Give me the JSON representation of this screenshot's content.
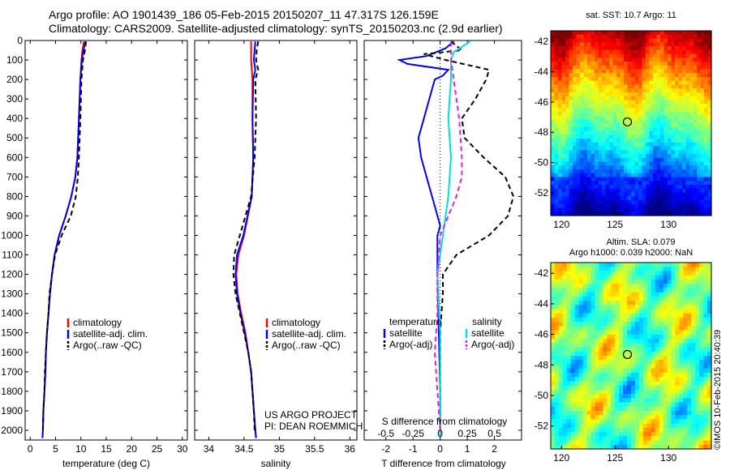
{
  "header": {
    "line1": "Argo profile: AO 1901439_186 05-Feb-2015 20150207_11 47.317S 126.159E",
    "line2": "Climatology: CARS2009. Satellite-adjusted climatology: synTS_20150203.nc (2.9d earlier)"
  },
  "timestamp": "©IMOS 10-Feb-2015 20:40:39",
  "credits": [
    "US ARGO PROJECT",
    "PI: DEAN ROEMMICH"
  ],
  "colors": {
    "climatology": "#ff0000",
    "satellite": "#0000ff",
    "argo": "#000000",
    "sat_salinity": "#00e0e0",
    "argo_salinity": "#e020e0"
  },
  "chart_data": [
    {
      "type": "line",
      "id": "temperature",
      "xlabel": "temperature (deg C)",
      "xlim": [
        -1,
        31
      ],
      "xticks": [
        0,
        5,
        10,
        15,
        20,
        25,
        30
      ],
      "ylim": [
        0,
        2050
      ],
      "yticks": [
        0,
        100,
        200,
        300,
        400,
        500,
        600,
        700,
        800,
        900,
        1000,
        1100,
        1200,
        1300,
        1400,
        1500,
        1600,
        1700,
        1800,
        1900,
        2000
      ],
      "legend": [
        "climatology",
        "satellite-adj. clim.",
        "Argo(..raw -QC)"
      ],
      "series": [
        {
          "name": "climatology",
          "color": "#ff0000",
          "dash": "",
          "points": [
            [
              10.6,
              5
            ],
            [
              10.3,
              50
            ],
            [
              10.1,
              100
            ],
            [
              9.9,
              200
            ],
            [
              9.6,
              400
            ],
            [
              9.3,
              600
            ],
            [
              8.9,
              700
            ],
            [
              8.1,
              800
            ],
            [
              7.0,
              900
            ],
            [
              5.7,
              1000
            ],
            [
              4.8,
              1100
            ],
            [
              4.3,
              1200
            ],
            [
              3.9,
              1300
            ],
            [
              3.6,
              1400
            ],
            [
              3.3,
              1500
            ],
            [
              3.1,
              1600
            ],
            [
              3.0,
              1700
            ],
            [
              2.8,
              1800
            ],
            [
              2.6,
              1900
            ],
            [
              2.5,
              2000
            ],
            [
              2.4,
              2040
            ]
          ]
        },
        {
          "name": "satellite-adj. clim.",
          "color": "#0000ff",
          "dash": "",
          "points": [
            [
              10.9,
              5
            ],
            [
              10.5,
              50
            ],
            [
              10.2,
              100
            ],
            [
              9.9,
              200
            ],
            [
              9.6,
              400
            ],
            [
              9.3,
              600
            ],
            [
              8.9,
              700
            ],
            [
              8.1,
              800
            ],
            [
              7.0,
              900
            ],
            [
              5.7,
              1000
            ],
            [
              4.8,
              1100
            ],
            [
              4.3,
              1200
            ],
            [
              3.9,
              1300
            ],
            [
              3.6,
              1400
            ],
            [
              3.3,
              1500
            ],
            [
              3.1,
              1600
            ],
            [
              3.0,
              1700
            ],
            [
              2.8,
              1800
            ],
            [
              2.6,
              1900
            ],
            [
              2.5,
              2000
            ],
            [
              2.4,
              2040
            ]
          ]
        },
        {
          "name": "Argo(..raw -QC)",
          "color": "#000000",
          "dash": "6,4",
          "points": [
            [
              11.0,
              5
            ],
            [
              10.8,
              50
            ],
            [
              10.4,
              100
            ],
            [
              10.1,
              200
            ],
            [
              9.9,
              400
            ],
            [
              9.6,
              600
            ],
            [
              9.4,
              700
            ],
            [
              9.0,
              800
            ],
            [
              8.0,
              900
            ],
            [
              6.2,
              1000
            ],
            [
              4.9,
              1100
            ],
            [
              4.3,
              1200
            ],
            [
              3.8,
              1300
            ],
            [
              3.6,
              1400
            ],
            [
              3.3,
              1500
            ],
            [
              3.1,
              1600
            ],
            [
              2.9,
              1700
            ],
            [
              2.8,
              1800
            ],
            [
              2.6,
              1900
            ],
            [
              2.5,
              2000
            ]
          ]
        }
      ]
    },
    {
      "type": "line",
      "id": "salinity",
      "xlabel": "salinity",
      "xlim": [
        33.8,
        36.1
      ],
      "xticks": [
        34,
        34.5,
        35,
        35.5,
        36
      ],
      "ylim": [
        0,
        2050
      ],
      "yticks": [
        0,
        100,
        200,
        300,
        400,
        500,
        600,
        700,
        800,
        900,
        1000,
        1100,
        1200,
        1300,
        1400,
        1500,
        1600,
        1700,
        1800,
        1900,
        2000
      ],
      "legend": [
        "climatology",
        "satellite-adj. clim.",
        "Argo(..raw -QC)"
      ],
      "series": [
        {
          "name": "climatology",
          "color": "#ff0000",
          "dash": "",
          "points": [
            [
              34.6,
              5
            ],
            [
              34.6,
              100
            ],
            [
              34.62,
              200
            ],
            [
              34.62,
              400
            ],
            [
              34.63,
              600
            ],
            [
              34.61,
              800
            ],
            [
              34.5,
              1000
            ],
            [
              34.42,
              1100
            ],
            [
              34.39,
              1200
            ],
            [
              34.41,
              1300
            ],
            [
              34.46,
              1400
            ],
            [
              34.52,
              1500
            ],
            [
              34.56,
              1600
            ],
            [
              34.6,
              1700
            ],
            [
              34.62,
              1800
            ],
            [
              34.64,
              1900
            ],
            [
              34.66,
              2000
            ],
            [
              34.67,
              2040
            ]
          ]
        },
        {
          "name": "satellite-adj. clim.",
          "color": "#0000ff",
          "dash": "",
          "points": [
            [
              34.66,
              5
            ],
            [
              34.65,
              50
            ],
            [
              34.64,
              100
            ],
            [
              34.66,
              150
            ],
            [
              34.63,
              200
            ],
            [
              34.62,
              400
            ],
            [
              34.63,
              600
            ],
            [
              34.61,
              800
            ],
            [
              34.49,
              1000
            ],
            [
              34.4,
              1100
            ],
            [
              34.38,
              1200
            ],
            [
              34.4,
              1300
            ],
            [
              34.45,
              1400
            ],
            [
              34.51,
              1500
            ],
            [
              34.56,
              1600
            ],
            [
              34.6,
              1700
            ],
            [
              34.62,
              1800
            ],
            [
              34.64,
              1900
            ],
            [
              34.66,
              2000
            ],
            [
              34.67,
              2040
            ]
          ]
        },
        {
          "name": "Argo(..raw -QC)",
          "color": "#000000",
          "dash": "6,4",
          "points": [
            [
              34.7,
              5
            ],
            [
              34.68,
              50
            ],
            [
              34.67,
              100
            ],
            [
              34.7,
              150
            ],
            [
              34.66,
              200
            ],
            [
              34.67,
              400
            ],
            [
              34.65,
              600
            ],
            [
              34.6,
              800
            ],
            [
              34.44,
              1000
            ],
            [
              34.36,
              1100
            ],
            [
              34.35,
              1200
            ],
            [
              34.38,
              1300
            ],
            [
              34.44,
              1400
            ],
            [
              34.5,
              1500
            ],
            [
              34.56,
              1600
            ],
            [
              34.6,
              1700
            ],
            [
              34.62,
              1800
            ],
            [
              34.64,
              1900
            ],
            [
              34.65,
              2000
            ]
          ]
        }
      ]
    },
    {
      "type": "line",
      "id": "differences",
      "xlabel": "T difference from climatology",
      "xlabel_top": "S difference from climatology",
      "xlim": [
        -2.8,
        3.0
      ],
      "xticks": [
        -2,
        -1,
        0,
        1,
        2
      ],
      "s_ticks_label": [
        "-0.5",
        "-0.25",
        "0",
        "0.25",
        "0.5"
      ],
      "s_ticks_pos": [
        -2,
        -1,
        0,
        1,
        2
      ],
      "ylim": [
        0,
        2050
      ],
      "legend_titles": [
        "temperature",
        "salinity"
      ],
      "legend": [
        "satellite",
        "Argo(-adj)",
        "satellite",
        "Argo(-adj)"
      ],
      "series": [
        {
          "name": "T satellite",
          "color": "#0000ff",
          "dash": "",
          "points": [
            [
              0.5,
              5
            ],
            [
              0.2,
              40
            ],
            [
              -0.5,
              80
            ],
            [
              -1.5,
              100
            ],
            [
              -1.2,
              120
            ],
            [
              0.3,
              150
            ],
            [
              0.1,
              180
            ],
            [
              -0.2,
              200
            ],
            [
              -0.4,
              300
            ],
            [
              -0.6,
              400
            ],
            [
              -0.8,
              500
            ],
            [
              -0.7,
              600
            ],
            [
              -0.5,
              700
            ],
            [
              -0.2,
              850
            ],
            [
              0,
              950
            ],
            [
              -0.1,
              1000
            ],
            [
              -0.1,
              1200
            ],
            [
              -0.05,
              1500
            ],
            [
              0,
              1800
            ],
            [
              0,
              2040
            ]
          ]
        },
        {
          "name": "T Argo(-adj)",
          "color": "#000000",
          "dash": "6,4",
          "points": [
            [
              0.4,
              5
            ],
            [
              0.8,
              50
            ],
            [
              -0.6,
              70
            ],
            [
              0.2,
              100
            ],
            [
              1.8,
              150
            ],
            [
              1.7,
              200
            ],
            [
              1.3,
              300
            ],
            [
              0.8,
              400
            ],
            [
              0.9,
              500
            ],
            [
              1.6,
              600
            ],
            [
              2.4,
              700
            ],
            [
              2.7,
              800
            ],
            [
              2.5,
              900
            ],
            [
              1.8,
              1000
            ],
            [
              0.6,
              1100
            ],
            [
              0.1,
              1200
            ],
            [
              0.1,
              1300
            ],
            [
              0.05,
              1400
            ],
            [
              0,
              1500
            ],
            [
              0,
              1600
            ],
            [
              0,
              1700
            ],
            [
              0,
              1800
            ],
            [
              0,
              1900
            ],
            [
              0,
              2040
            ]
          ]
        },
        {
          "name": "S satellite",
          "color": "#00e0e0",
          "dash": "",
          "points": [
            [
              1.1,
              5
            ],
            [
              0.5,
              60
            ],
            [
              0.4,
              100
            ],
            [
              0.4,
              200
            ],
            [
              0.3,
              400
            ],
            [
              0.4,
              600
            ],
            [
              0.3,
              800
            ],
            [
              0.1,
              1000
            ],
            [
              -0.1,
              1200
            ],
            [
              0.0,
              1500
            ],
            [
              0,
              1800
            ],
            [
              0,
              2040
            ]
          ]
        },
        {
          "name": "S Argo(-adj)",
          "color": "#e020e0",
          "dash": "6,4",
          "points": [
            [
              0.4,
              5
            ],
            [
              0.4,
              100
            ],
            [
              0.5,
              200
            ],
            [
              0.7,
              400
            ],
            [
              0.8,
              600
            ],
            [
              0.8,
              700
            ],
            [
              0.6,
              800
            ],
            [
              0.3,
              900
            ],
            [
              0.0,
              1000
            ],
            [
              -0.1,
              1200
            ],
            [
              -0.1,
              1400
            ],
            [
              -0.2,
              1600
            ],
            [
              -0.1,
              1800
            ],
            [
              0,
              2000
            ]
          ]
        }
      ]
    },
    {
      "type": "heatmap",
      "id": "sst_map",
      "title": "sat. SST: 10.7 Argo: 11",
      "xlim": [
        119,
        134
      ],
      "xticks": [
        120,
        125,
        130
      ],
      "ylim": [
        -53.5,
        -41.3
      ],
      "yticks": [
        -42,
        -44,
        -46,
        -48,
        -50,
        -52
      ],
      "marker": {
        "lon": 126.159,
        "lat": -47.317
      }
    },
    {
      "type": "heatmap",
      "id": "sla_map",
      "title": "Altim. SLA: 0.079",
      "subtitle": "Argo h1000: 0.039 h2000: NaN",
      "xlim": [
        119,
        134
      ],
      "xticks": [
        120,
        125,
        130
      ],
      "ylim": [
        -53.5,
        -41.3
      ],
      "yticks": [
        -42,
        -44,
        -46,
        -48,
        -50,
        -52
      ],
      "marker": {
        "lon": 126.159,
        "lat": -47.317
      }
    }
  ]
}
